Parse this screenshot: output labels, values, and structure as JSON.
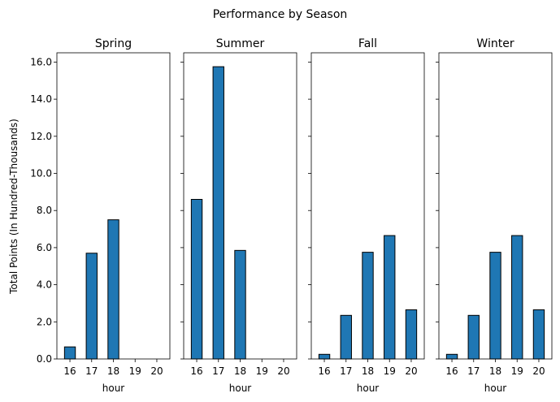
{
  "chart_data": {
    "type": "bar",
    "title": "Performance by Season",
    "ylabel": "Total Points (In Hundred-Thousands)",
    "ylim": [
      0,
      16.5
    ],
    "yticks": [
      0.0,
      2.0,
      4.0,
      6.0,
      8.0,
      10.0,
      12.0,
      14.0,
      16.0
    ],
    "ytick_labels": [
      "0.0",
      "2.0",
      "4.0",
      "6.0",
      "8.0",
      "10.0",
      "12.0",
      "14.0",
      "16.0"
    ],
    "categories": [
      "16",
      "17",
      "18",
      "19",
      "20"
    ],
    "bar_color": "#1f77b4",
    "edge_color": "#000000",
    "grid": false,
    "panels": [
      {
        "title": "Spring",
        "xlabel": "hour",
        "values": [
          0.65,
          5.7,
          7.5,
          null,
          null
        ]
      },
      {
        "title": "Summer",
        "xlabel": "hour",
        "values": [
          8.6,
          15.75,
          5.85,
          null,
          null
        ]
      },
      {
        "title": "Fall",
        "xlabel": "hour",
        "values": [
          0.25,
          2.35,
          5.75,
          6.65,
          2.65
        ]
      },
      {
        "title": "Winter",
        "xlabel": "hour",
        "values": [
          0.25,
          2.35,
          5.75,
          6.65,
          2.65
        ]
      }
    ]
  }
}
